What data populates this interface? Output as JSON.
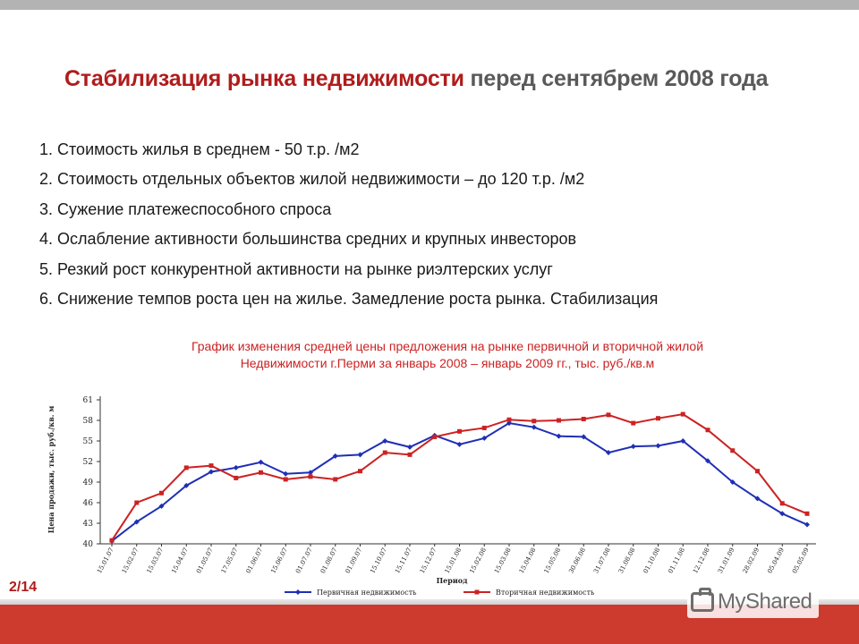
{
  "slide": {
    "title_main": "Стабилизация рынка недвижимости",
    "title_rest": "перед сентябрем 2008 года",
    "points": [
      "1. Стоимость жилья в среднем - 50 т.р. /м2",
      "2. Стоимость отдельных объектов жилой недвижимости – до 120 т.р. /м2",
      "3. Сужение платежеспособного спроса",
      "4. Ослабление активности большинства средних и крупных инвесторов",
      "5. Резкий рост конкурентной активности на рынке риэлтерских услуг",
      "6. Снижение темпов роста цен на жилье. Замедление роста рынка. Стабилизация"
    ],
    "chart_caption_line1": "График изменения средней цены предложения на рынке первичной и вторичной жилой",
    "chart_caption_line2": "Недвижимости г.Перми за январь 2008 – январь 2009 гг., тыс. руб./кв.м",
    "page_number": "2/14",
    "watermark": "MyShared"
  },
  "chart_data": {
    "type": "line",
    "title": "",
    "xlabel": "Период",
    "ylabel": "Цена продажи, тыс. руб./кв. м",
    "ylim": [
      40,
      61
    ],
    "yticks": [
      40,
      43,
      46,
      49,
      52,
      55,
      58,
      61
    ],
    "grid": false,
    "legend_position": "bottom",
    "x": [
      "15.01.07",
      "15.02.07",
      "15.03.07",
      "15.04.07",
      "01.05.07",
      "17.05.07",
      "01.06.07",
      "15.06.07",
      "01.07.07",
      "01.08.07",
      "01.09.07",
      "15.10.07",
      "15.11.07",
      "15.12.07",
      "15.01.08",
      "15.02.08",
      "15.03.08",
      "15.04.08",
      "15.05.08",
      "30.06.08",
      "31.07.08",
      "31.08.08",
      "01.10.08",
      "01.11.08",
      "12.12.08",
      "31.01.09",
      "28.02.09",
      "05.04.09",
      "05.05.09"
    ],
    "series": [
      {
        "name": "Первичная недвижимость",
        "color": "#1f2fb5",
        "values": [
          40.4,
          43.2,
          45.5,
          48.5,
          50.5,
          51.1,
          51.9,
          50.2,
          50.4,
          52.8,
          53.0,
          55.0,
          54.1,
          55.8,
          54.5,
          55.4,
          57.6,
          57.0,
          55.7,
          55.6,
          53.3,
          54.2,
          54.3,
          55.0,
          52.1,
          49.0,
          46.6,
          44.4,
          42.8
        ],
        "marker": "diamond"
      },
      {
        "name": "Вторичная недвижимость",
        "color": "#cc2222",
        "values": [
          40.5,
          46.0,
          47.4,
          51.1,
          51.4,
          49.6,
          50.4,
          49.4,
          49.8,
          49.4,
          50.6,
          53.3,
          53.0,
          55.6,
          56.4,
          56.9,
          58.1,
          57.9,
          58.0,
          58.2,
          58.8,
          57.6,
          58.3,
          58.9,
          56.6,
          53.6,
          50.6,
          45.9,
          44.4
        ],
        "marker": "square"
      }
    ]
  }
}
